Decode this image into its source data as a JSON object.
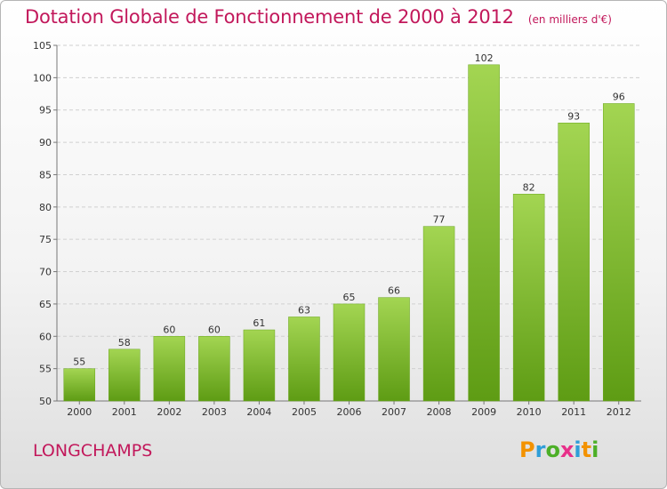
{
  "header": {
    "title": "Dotation Globale de Fonctionnement de 2000 à 2012",
    "unit": "(en milliers d'€)"
  },
  "footer": {
    "commune": "LONGCHAMPS"
  },
  "logo": {
    "letters": [
      "P",
      "r",
      "o",
      "x",
      "i",
      "t",
      "i"
    ],
    "colors": [
      "#f39200",
      "#2f9ed8",
      "#4caf27",
      "#e8308a",
      "#2f9ed8",
      "#f39200",
      "#4caf27"
    ]
  },
  "chart_data": {
    "type": "bar",
    "title": "Dotation Globale de Fonctionnement de 2000 à 2012",
    "subtitle": "(en milliers d'€)",
    "categories": [
      "2000",
      "2001",
      "2002",
      "2003",
      "2004",
      "2005",
      "2006",
      "2007",
      "2008",
      "2009",
      "2010",
      "2011",
      "2012"
    ],
    "values": [
      55,
      58,
      60,
      60,
      61,
      63,
      65,
      66,
      77,
      102,
      82,
      93,
      96
    ],
    "ylim": [
      50,
      105
    ],
    "yticks": [
      50,
      55,
      60,
      65,
      70,
      75,
      80,
      85,
      90,
      95,
      100,
      105
    ],
    "grid": true,
    "bar_color": "#7dbb2e"
  }
}
